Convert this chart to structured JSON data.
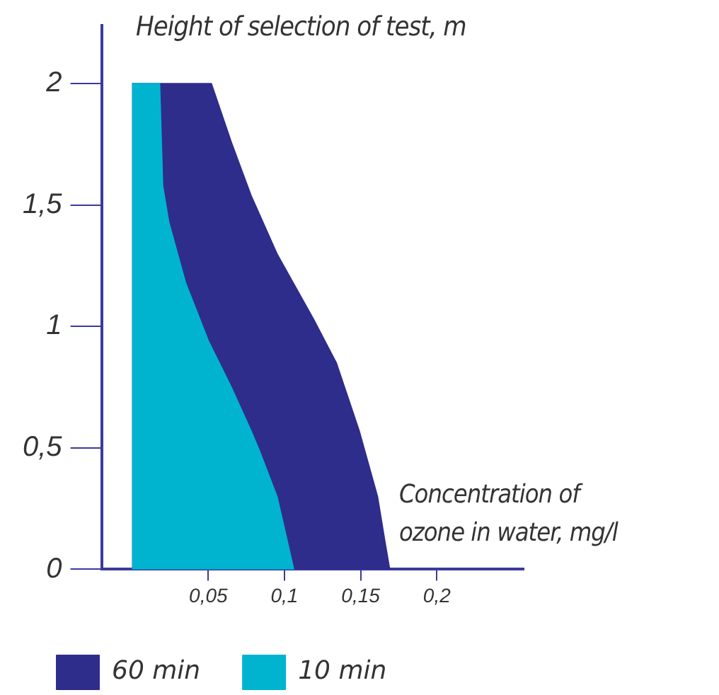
{
  "chart_data": {
    "type": "area",
    "xlabel": "Concentration of ozone in water, mg/l",
    "ylabel": "Height of selection of test, m",
    "xlim": [
      -0.02,
      0.257
    ],
    "ylim": [
      0,
      2.24
    ],
    "xticks": [
      {
        "value": 0.05,
        "label": "0,05"
      },
      {
        "value": 0.1,
        "label": "0,1"
      },
      {
        "value": 0.15,
        "label": "0,15"
      },
      {
        "value": 0.2,
        "label": "0,2"
      }
    ],
    "yticks": [
      0,
      {
        "value": 0.5,
        "label": "0,5"
      },
      1,
      {
        "value": 1.5,
        "label": "1,5"
      },
      2
    ],
    "legend": "bottom left",
    "grid": false,
    "series": [
      {
        "name": "60 min",
        "color": "#2e2d8c",
        "x": [
          0,
          0.052,
          0.065,
          0.078,
          0.095,
          0.119,
          0.134,
          0.149,
          0.161,
          0.166,
          0.169,
          0
        ],
        "values": [
          2,
          2,
          1.76,
          1.54,
          1.3,
          1.03,
          0.85,
          0.57,
          0.3,
          0.11,
          0,
          0
        ]
      },
      {
        "name": "10 min",
        "color": "#00b4d0",
        "x": [
          0,
          0.018,
          0.02,
          0.024,
          0.035,
          0.05,
          0.065,
          0.078,
          0.084,
          0.095,
          0.102,
          0.106,
          0
        ],
        "values": [
          2,
          2,
          1.58,
          1.43,
          1.18,
          0.94,
          0.75,
          0.57,
          0.48,
          0.3,
          0.11,
          0,
          0
        ]
      }
    ]
  }
}
